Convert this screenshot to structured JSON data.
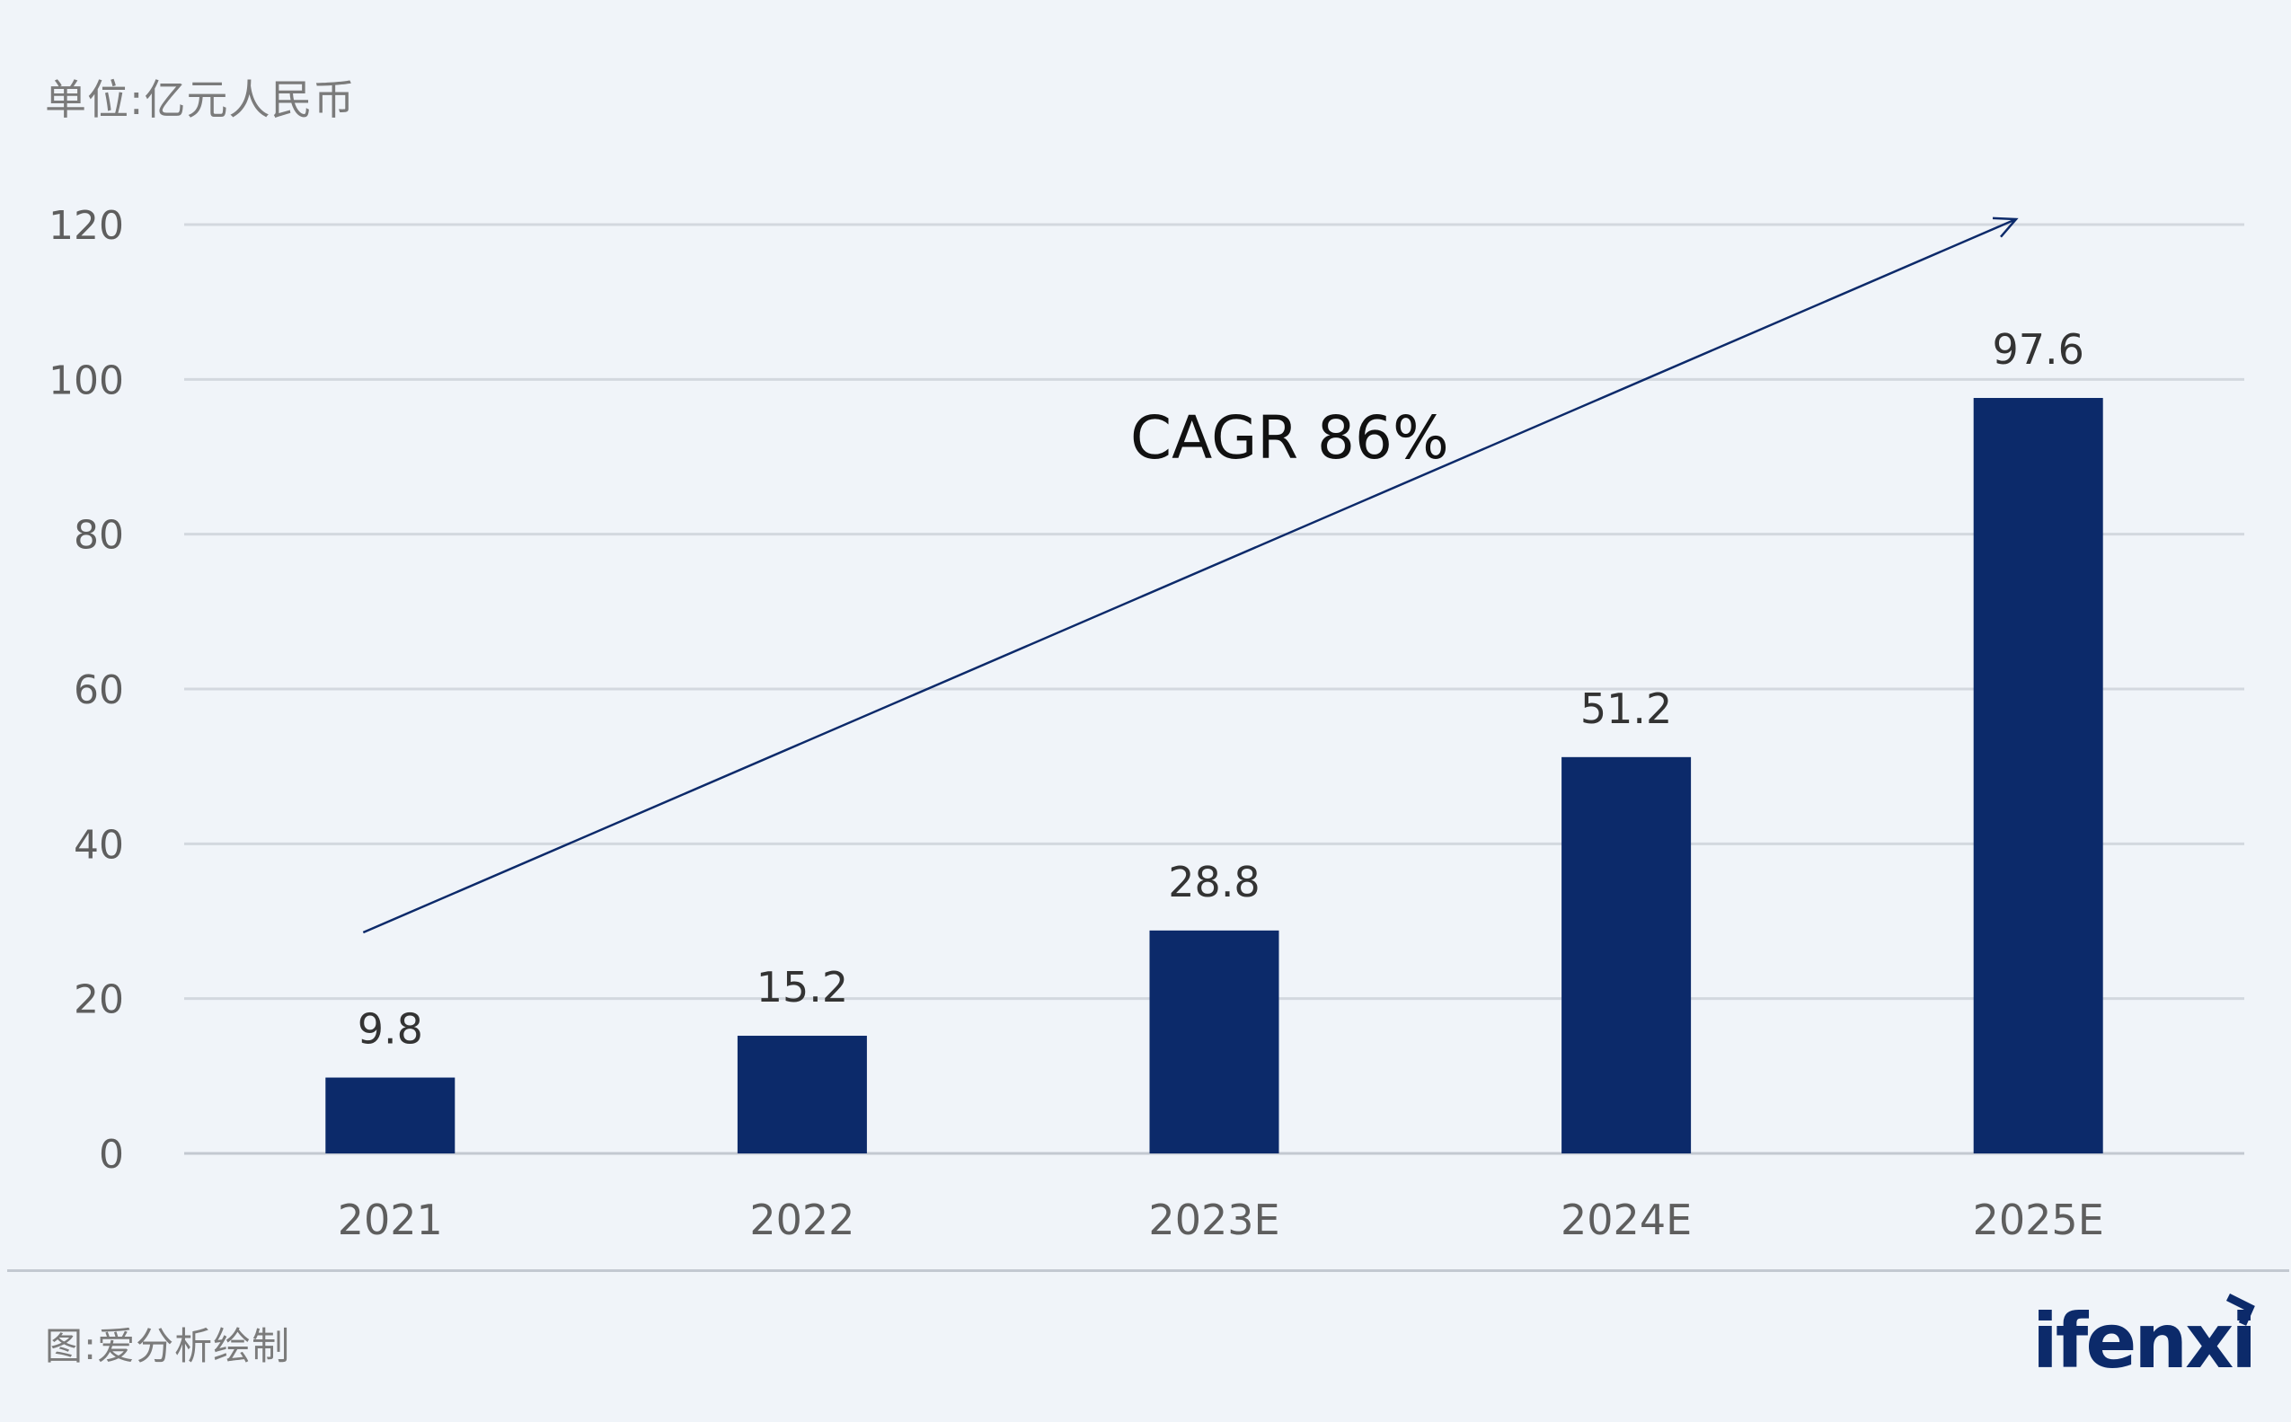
{
  "unit_label": "单位:亿元人民币",
  "source_label": "图:爱分析绘制",
  "brand": {
    "name": "ifenxi"
  },
  "colors": {
    "bar": "#0c2a6a",
    "grid": "#d3d8df",
    "axis_text": "#5e5e5e",
    "arrow": "#0c2a6a",
    "background": "#f0f4f9"
  },
  "chart_data": {
    "type": "bar",
    "title": "",
    "xlabel": "",
    "ylabel": "",
    "categories": [
      "2021",
      "2022",
      "2023E",
      "2024E",
      "2025E"
    ],
    "values": [
      9.8,
      15.2,
      28.8,
      51.2,
      97.6
    ],
    "value_labels": [
      "9.8",
      "15.2",
      "28.8",
      "51.2",
      "97.6"
    ],
    "ylim": [
      0,
      120
    ],
    "yticks": [
      0,
      20,
      40,
      60,
      80,
      100,
      120
    ],
    "grid": true,
    "legend": "none",
    "annotation": {
      "text": "CAGR 86%",
      "arrow": true
    }
  }
}
